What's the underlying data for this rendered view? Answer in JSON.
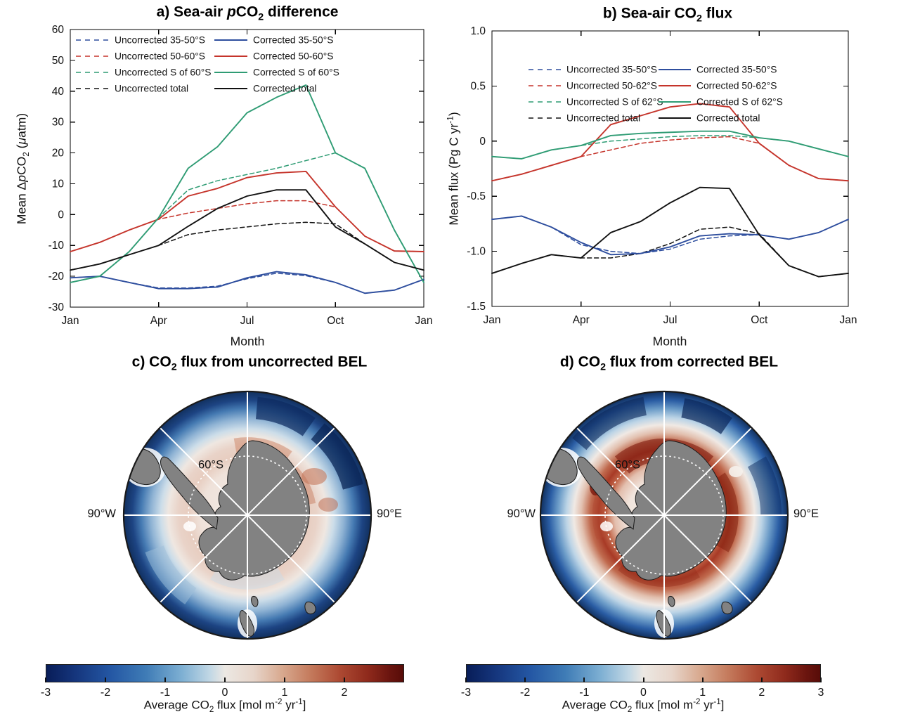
{
  "colors": {
    "blue": "#2e4e9e",
    "red": "#c5342b",
    "green": "#2f9c74",
    "black": "#111111",
    "land_gray": "#828282",
    "deep_blue": "#11305f",
    "deep_red": "#6b150f"
  },
  "figure": {
    "panels": {
      "a": {
        "title_rich": [
          {
            "t": "a) Sea-air "
          },
          {
            "t": "p",
            "i": true
          },
          {
            "t": "CO"
          },
          {
            "t": "2",
            "sub": true
          },
          {
            "t": " difference"
          }
        ],
        "xlabel": "Month",
        "ylabel_rich": [
          {
            "t": "Mean Δ"
          },
          {
            "t": "p",
            "i": true
          },
          {
            "t": "CO"
          },
          {
            "t": "2",
            "sub": true
          },
          {
            "t": " ("
          },
          {
            "t": "μ",
            "i": true
          },
          {
            "t": "atm)"
          }
        ]
      },
      "b": {
        "title_rich": [
          {
            "t": "b) Sea-air CO"
          },
          {
            "t": "2",
            "sub": true
          },
          {
            "t": " flux"
          }
        ],
        "xlabel": "Month",
        "ylabel_rich": [
          {
            "t": "Mean flux (Pg C yr"
          },
          {
            "t": "-1",
            "sup": true
          },
          {
            "t": ")"
          }
        ]
      },
      "c": {
        "title_rich": [
          {
            "t": "c) CO"
          },
          {
            "t": "2",
            "sub": true
          },
          {
            "t": " flux from uncorrected BEL"
          }
        ],
        "lat_label": "60°S",
        "west_label": "90°W",
        "east_label": "90°E",
        "colorbar": {
          "ticks": [
            {
              "v": -3,
              "l": "-3"
            },
            {
              "v": -2,
              "l": "-2"
            },
            {
              "v": -1,
              "l": "-1"
            },
            {
              "v": 0,
              "l": "0"
            },
            {
              "v": 1,
              "l": "1"
            },
            {
              "v": 2,
              "l": "2"
            }
          ],
          "caption_rich": [
            {
              "t": "Average CO"
            },
            {
              "t": "2",
              "sub": true
            },
            {
              "t": " flux [mol m"
            },
            {
              "t": "-2",
              "sup": true
            },
            {
              "t": " yr"
            },
            {
              "t": "-1",
              "sup": true
            },
            {
              "t": "]"
            }
          ]
        }
      },
      "d": {
        "title_rich": [
          {
            "t": "d) CO"
          },
          {
            "t": "2",
            "sub": true
          },
          {
            "t": " flux from corrected BEL"
          }
        ],
        "lat_label": "60°S",
        "west_label": "90°W",
        "east_label": "90°E",
        "colorbar": {
          "ticks": [
            {
              "v": -3,
              "l": "-3"
            },
            {
              "v": -2,
              "l": "-2"
            },
            {
              "v": -1,
              "l": "-1"
            },
            {
              "v": 0,
              "l": "0"
            },
            {
              "v": 1,
              "l": "1"
            },
            {
              "v": 2,
              "l": "2"
            },
            {
              "v": 3,
              "l": "3"
            }
          ],
          "caption_rich": [
            {
              "t": "Average CO"
            },
            {
              "t": "2",
              "sub": true
            },
            {
              "t": " flux [mol m"
            },
            {
              "t": "-2",
              "sup": true
            },
            {
              "t": " yr"
            },
            {
              "t": "-1",
              "sup": true
            },
            {
              "t": "]"
            }
          ]
        }
      }
    }
  },
  "chart_data": [
    {
      "type": "line",
      "panel": "a",
      "title": "a) Sea-air pCO2 difference",
      "xlabel": "Month",
      "ylabel": "Mean dpCO2 (uatm)",
      "categories": [
        "Jan",
        "Feb",
        "Mar",
        "Apr",
        "May",
        "Jun",
        "Jul",
        "Aug",
        "Sep",
        "Oct",
        "Nov",
        "Dec",
        "Jan"
      ],
      "ylim": [
        -30,
        60
      ],
      "yticks": [
        {
          "v": 60,
          "l": "60"
        },
        {
          "v": 50,
          "l": "50"
        },
        {
          "v": 40,
          "l": "40"
        },
        {
          "v": 30,
          "l": "30"
        },
        {
          "v": 20,
          "l": "20"
        },
        {
          "v": 10,
          "l": "10"
        },
        {
          "v": 0,
          "l": "0"
        },
        {
          "v": -10,
          "l": "-10"
        },
        {
          "v": -20,
          "l": "-20"
        },
        {
          "v": -30,
          "l": "-30"
        }
      ],
      "xticks": [
        {
          "i": 0,
          "l": "Jan"
        },
        {
          "i": 3,
          "l": "Apr"
        },
        {
          "i": 6,
          "l": "Jul"
        },
        {
          "i": 9,
          "l": "Oct"
        },
        {
          "i": 12,
          "l": "Jan"
        }
      ],
      "legend": {
        "columns": [
          [
            0,
            1,
            2,
            3
          ],
          [
            4,
            5,
            6,
            7
          ]
        ],
        "position": "top-left-two-columns"
      },
      "series": [
        {
          "name": "Uncorrected 35-50°S",
          "color": "#2e4e9e",
          "style": "dashed",
          "values": [
            -20.5,
            -20,
            -22,
            -23.8,
            -23.8,
            -23.2,
            -20.8,
            -19,
            -19.8,
            -22,
            -25.5,
            -24.5,
            -21
          ]
        },
        {
          "name": "Uncorrected 50-60°S",
          "color": "#c5342b",
          "style": "dashed",
          "values": [
            -12,
            -9,
            -5,
            -1.5,
            0.5,
            2,
            3.5,
            4.5,
            4.5,
            2.5,
            -7,
            -11.8,
            -12
          ]
        },
        {
          "name": "Uncorrected S of 60°S",
          "color": "#2f9c74",
          "style": "dashed",
          "values": [
            -22,
            -20,
            -12,
            -1,
            8,
            11,
            13,
            15,
            17.5,
            20,
            15,
            -5,
            -22
          ]
        },
        {
          "name": "Uncorrected total",
          "color": "#111111",
          "style": "dashed",
          "values": [
            -18,
            -16,
            -13,
            -10,
            -6.5,
            -5,
            -4,
            -3,
            -2.5,
            -3,
            -9.5,
            -15.5,
            -18
          ]
        },
        {
          "name": "Corrected 35-50°S",
          "color": "#2e4e9e",
          "style": "solid",
          "values": [
            -20.5,
            -20,
            -22,
            -24,
            -24,
            -23.5,
            -20.5,
            -18.5,
            -19.5,
            -22,
            -25.5,
            -24.5,
            -21
          ]
        },
        {
          "name": "Corrected 50-60°S",
          "color": "#c5342b",
          "style": "solid",
          "values": [
            -12,
            -9,
            -5,
            -1.5,
            6,
            8.5,
            12,
            13.5,
            14,
            2.5,
            -7,
            -11.8,
            -12
          ]
        },
        {
          "name": "Corrected S of 60°S",
          "color": "#2f9c74",
          "style": "solid",
          "values": [
            -22,
            -20,
            -12,
            -1,
            15,
            22,
            33,
            38,
            42,
            20,
            15,
            -5,
            -22
          ]
        },
        {
          "name": "Corrected total",
          "color": "#111111",
          "style": "solid",
          "values": [
            -18,
            -16,
            -13,
            -10,
            -3.8,
            2,
            6,
            8,
            8,
            -4,
            -9.5,
            -15.5,
            -18
          ]
        }
      ]
    },
    {
      "type": "line",
      "panel": "b",
      "title": "b) Sea-air CO2 flux",
      "xlabel": "Month",
      "ylabel": "Mean flux (Pg C yr-1)",
      "categories": [
        "Jan",
        "Feb",
        "Mar",
        "Apr",
        "May",
        "Jun",
        "Jul",
        "Aug",
        "Sep",
        "Oct",
        "Nov",
        "Dec",
        "Jan"
      ],
      "ylim": [
        -1.5,
        1.0
      ],
      "yticks": [
        {
          "v": 1.0,
          "l": "1.0"
        },
        {
          "v": 0.5,
          "l": "0.5"
        },
        {
          "v": 0,
          "l": "0"
        },
        {
          "v": -0.5,
          "l": "-0.5"
        },
        {
          "v": -1.0,
          "l": "-1.0"
        },
        {
          "v": -1.5,
          "l": "-1.5"
        }
      ],
      "xticks": [
        {
          "i": 0,
          "l": "Jan"
        },
        {
          "i": 3,
          "l": "Apr"
        },
        {
          "i": 6,
          "l": "Jul"
        },
        {
          "i": 9,
          "l": "Oct"
        },
        {
          "i": 12,
          "l": "Jan"
        }
      ],
      "legend": {
        "columns": [
          [
            0,
            1,
            2,
            3
          ],
          [
            4,
            5,
            6,
            7
          ]
        ],
        "position": "upper-left-two-columns"
      },
      "series": [
        {
          "name": "Uncorrected 35-50°S",
          "color": "#2e4e9e",
          "style": "dashed",
          "values": [
            -0.71,
            -0.68,
            -0.78,
            -0.94,
            -1.0,
            -1.02,
            -0.98,
            -0.89,
            -0.86,
            -0.85,
            -0.89,
            -0.83,
            -0.71
          ]
        },
        {
          "name": "Uncorrected 50-62°S",
          "color": "#c5342b",
          "style": "dashed",
          "values": [
            -0.36,
            -0.3,
            -0.22,
            -0.14,
            -0.08,
            -0.02,
            0.01,
            0.03,
            0.04,
            -0.02,
            -0.22,
            -0.34,
            -0.36
          ]
        },
        {
          "name": "Uncorrected S of 62°S",
          "color": "#2f9c74",
          "style": "dashed",
          "values": [
            -0.14,
            -0.16,
            -0.08,
            -0.04,
            0.0,
            0.02,
            0.04,
            0.05,
            0.05,
            0.03,
            0.0,
            -0.07,
            -0.14
          ]
        },
        {
          "name": "Uncorrected total",
          "color": "#111111",
          "style": "dashed",
          "values": [
            -1.2,
            -1.11,
            -1.03,
            -1.06,
            -1.06,
            -1.02,
            -0.93,
            -0.8,
            -0.78,
            -0.84,
            -1.13,
            -1.23,
            -1.2
          ]
        },
        {
          "name": "Corrected 35-50°S",
          "color": "#2e4e9e",
          "style": "solid",
          "values": [
            -0.71,
            -0.68,
            -0.78,
            -0.92,
            -1.03,
            -1.02,
            -0.96,
            -0.86,
            -0.84,
            -0.85,
            -0.89,
            -0.83,
            -0.71
          ]
        },
        {
          "name": "Corrected 50-62°S",
          "color": "#c5342b",
          "style": "solid",
          "values": [
            -0.36,
            -0.3,
            -0.22,
            -0.14,
            0.15,
            0.23,
            0.31,
            0.34,
            0.31,
            -0.02,
            -0.22,
            -0.34,
            -0.36
          ]
        },
        {
          "name": "Corrected S of 62°S",
          "color": "#2f9c74",
          "style": "solid",
          "values": [
            -0.14,
            -0.16,
            -0.08,
            -0.04,
            0.05,
            0.07,
            0.08,
            0.09,
            0.09,
            0.03,
            0.0,
            -0.07,
            -0.14
          ]
        },
        {
          "name": "Corrected total",
          "color": "#111111",
          "style": "solid",
          "values": [
            -1.2,
            -1.11,
            -1.03,
            -1.06,
            -0.83,
            -0.73,
            -0.56,
            -0.42,
            -0.43,
            -0.85,
            -1.13,
            -1.23,
            -1.2
          ]
        }
      ]
    },
    {
      "type": "heatmap",
      "panel": "c",
      "title": "c) CO2 flux from uncorrected BEL",
      "projection": "south-polar-stereographic",
      "graticule": {
        "lat_circle_label": "60°S",
        "meridian_labels": [
          "90°W",
          "90°E"
        ],
        "meridian_spacing_deg": 45
      },
      "colorbar": {
        "label": "Average CO2 flux [mol m-2 yr-1]",
        "min": -3,
        "max": 3,
        "ticks": [
          -3,
          -2,
          -1,
          0,
          1,
          2
        ]
      },
      "zonal_mean_flux_mol_m2_yr": [
        {
          "band": "35-45°S",
          "value": -2.3
        },
        {
          "band": "45-55°S",
          "value": -0.9
        },
        {
          "band": "55-62°S",
          "value": 0.3
        },
        {
          "band": "62-75°S",
          "value": 0.1
        }
      ],
      "features": [
        "weak patchy pale-red outgassing near 60°S",
        "strong blue uptake ring north of 45°S",
        "gray land: Antarctica with peninsula, southern South America, New Zealand, Tasmania",
        "white dotted 60°S circle and white 45° meridian graticule"
      ]
    },
    {
      "type": "heatmap",
      "panel": "d",
      "title": "d) CO2 flux from corrected BEL",
      "projection": "south-polar-stereographic",
      "graticule": {
        "lat_circle_label": "60°S",
        "meridian_labels": [
          "90°W",
          "90°E"
        ],
        "meridian_spacing_deg": 45
      },
      "colorbar": {
        "label": "Average CO2 flux [mol m-2 yr-1]",
        "min": -3,
        "max": 3,
        "ticks": [
          -3,
          -2,
          -1,
          0,
          1,
          2,
          3
        ]
      },
      "zonal_mean_flux_mol_m2_yr": [
        {
          "band": "35-45°S",
          "value": -2.3
        },
        {
          "band": "45-55°S",
          "value": -0.7
        },
        {
          "band": "55-62°S",
          "value": 1.6
        },
        {
          "band": "62-75°S",
          "value": 0.2
        }
      ],
      "features": [
        "strong continuous dark-red outgassing ring 50-62°S",
        "strong blue uptake ring north of 45°S",
        "gray land: Antarctica with peninsula, southern South America, New Zealand, Tasmania",
        "white dotted 60°S circle and white 45° meridian graticule"
      ]
    }
  ]
}
